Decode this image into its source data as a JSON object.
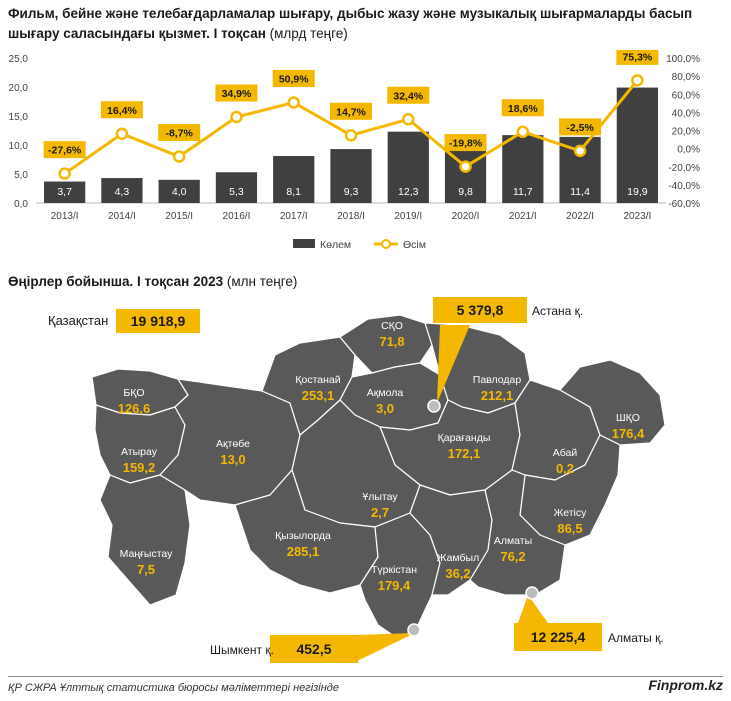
{
  "title": {
    "main": "Фильм, бейне және телебағдарламалар шығару, дыбыс жазу және музыкалық шығармаларды басып шығару саласындағы қызмет. I тоқсан",
    "unit": "(млрд теңге)"
  },
  "chart_data": {
    "type": "bar+line",
    "categories": [
      "2013/I",
      "2014/I",
      "2015/I",
      "2016/I",
      "2017/I",
      "2018/I",
      "2019/I",
      "2020/I",
      "2021/I",
      "2022/I",
      "2023/I"
    ],
    "series": [
      {
        "name": "Көлем",
        "type": "bar",
        "axis": "left",
        "values": [
          3.7,
          4.3,
          4.0,
          5.3,
          8.1,
          9.3,
          12.3,
          9.8,
          11.7,
          11.4,
          19.9
        ],
        "labels": [
          "3,7",
          "4,3",
          "4,0",
          "5,3",
          "8,1",
          "9,3",
          "12,3",
          "9,8",
          "11,7",
          "11,4",
          "19,9"
        ]
      },
      {
        "name": "Өсім",
        "type": "line",
        "axis": "right",
        "values": [
          -27.6,
          16.4,
          -8.7,
          34.9,
          50.9,
          14.7,
          32.4,
          -19.8,
          18.6,
          -2.5,
          75.3
        ],
        "labels": [
          "-27,6%",
          "16,4%",
          "-8,7%",
          "34,9%",
          "50,9%",
          "14,7%",
          "32,4%",
          "-19,8%",
          "18,6%",
          "-2,5%",
          "75,3%"
        ]
      }
    ],
    "y_left": {
      "range": [
        0,
        25
      ],
      "ticks": [
        "0,0",
        "5,0",
        "10,0",
        "15,0",
        "20,0",
        "25,0"
      ]
    },
    "y_right": {
      "range": [
        -60,
        100
      ],
      "ticks": [
        "-60,0%",
        "-40,0%",
        "-20,0%",
        "0,0%",
        "20,0%",
        "40,0%",
        "60,0%",
        "80,0%",
        "100,0%"
      ]
    },
    "legend": {
      "position": "bottom",
      "items": [
        "Көлем",
        "Өсім"
      ]
    },
    "colors": {
      "bar": "#404040",
      "line": "#f5b800",
      "label_box": "#f5b800"
    }
  },
  "map": {
    "subtitle": "Өңірлер бойынша. I тоқсан 2023",
    "unit": "(млн теңге)",
    "total": {
      "label": "Қазақстан",
      "value": "19 918,9"
    },
    "cities": [
      {
        "name": "Астана қ.",
        "value": "5 379,8"
      },
      {
        "name": "Шымкент қ.",
        "value": "452,5"
      },
      {
        "name": "Алматы қ.",
        "value": "12 225,4"
      }
    ],
    "regions": [
      {
        "name": "СҚО",
        "value": "71,8"
      },
      {
        "name": "Қостанай",
        "value": "253,1"
      },
      {
        "name": "Ақмола",
        "value": "3,0"
      },
      {
        "name": "Павлодар",
        "value": "212,1"
      },
      {
        "name": "БҚО",
        "value": "126,6"
      },
      {
        "name": "Атырау",
        "value": "159,2"
      },
      {
        "name": "Ақтөбе",
        "value": "13,0"
      },
      {
        "name": "Қарағанды",
        "value": "172,1"
      },
      {
        "name": "ШҚО",
        "value": "176,4"
      },
      {
        "name": "Абай",
        "value": "0,2"
      },
      {
        "name": "Ұлытау",
        "value": "2,7"
      },
      {
        "name": "Маңғыстау",
        "value": "7,5"
      },
      {
        "name": "Қызылорда",
        "value": "285,1"
      },
      {
        "name": "Жетісу",
        "value": "86,5"
      },
      {
        "name": "Алматы",
        "value": "76,2"
      },
      {
        "name": "Жамбыл",
        "value": "36,2"
      },
      {
        "name": "Түркістан",
        "value": "179,4"
      }
    ],
    "colors": {
      "map_fill": "#595959",
      "map_stroke": "#ffffff",
      "value_text": "#f5b800",
      "callout": "#f5b800"
    }
  },
  "footer": {
    "source": "ҚР СЖРА Ұлттық статистика бюросы мәліметтері негізінде",
    "brand": "Finprom.kz"
  }
}
